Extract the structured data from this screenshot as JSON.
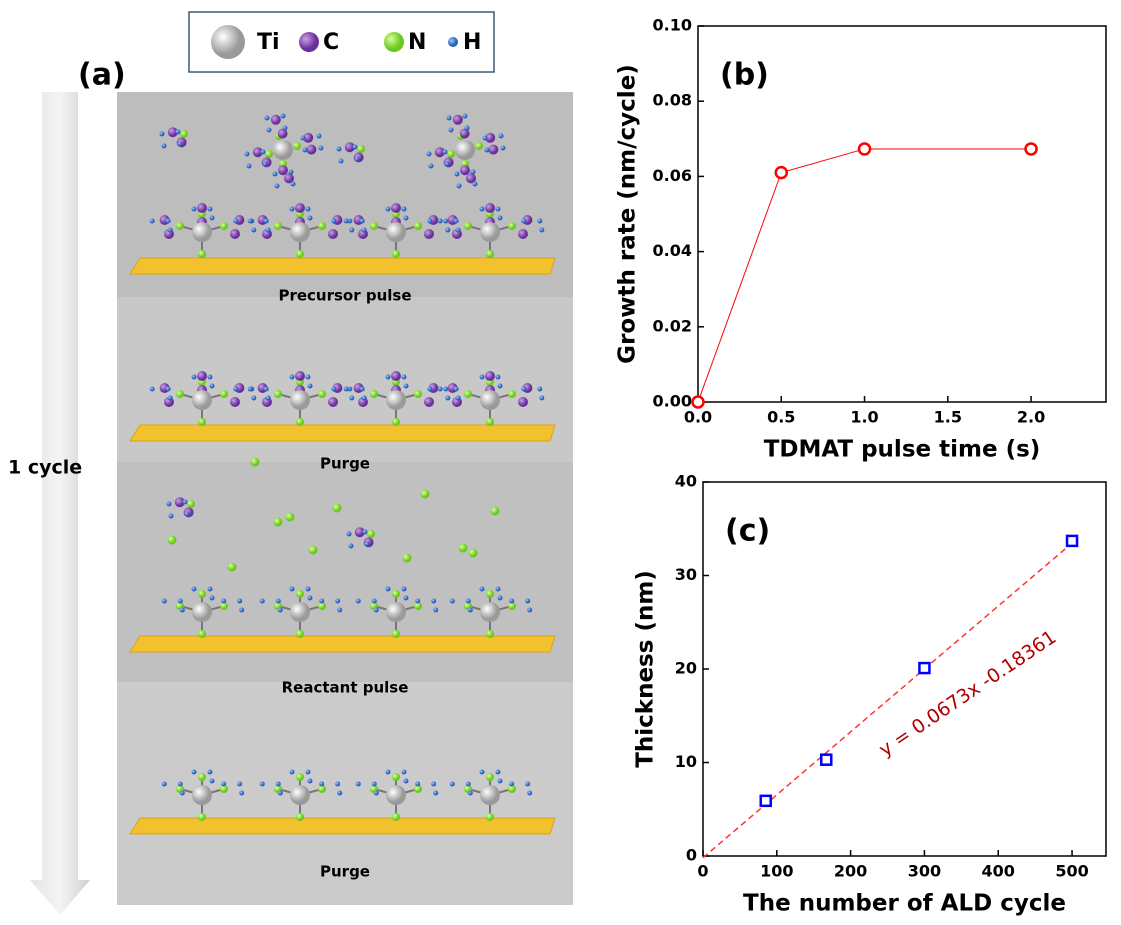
{
  "panel_a": {
    "label": "(a)",
    "legend": [
      "Ti",
      "C",
      "N",
      "H"
    ],
    "cycle_label": "1 cycle",
    "steps": [
      "Precursor pulse",
      "Purge",
      "Reactant pulse",
      "Purge"
    ]
  },
  "chart_data": [
    {
      "type": "line",
      "panel_label": "(b)",
      "x_label": "TDMAT pulse time (s)",
      "y_label": "Growth rate (nm/cycle)",
      "x": [
        0,
        0.5,
        1,
        2
      ],
      "values": [
        0,
        0.061,
        0.0673,
        0.0673
      ],
      "color": "#ff0000",
      "xlim": [
        0,
        2.45
      ],
      "ylim": [
        0,
        0.1
      ],
      "xticks": [
        {
          "value": 0,
          "label": "0.0"
        },
        0.5,
        {
          "value": 1,
          "label": "1.0"
        },
        1.5,
        {
          "value": 2,
          "label": "2.0"
        }
      ],
      "yticks": [
        {
          "value": 0,
          "label": "0.00"
        },
        0.02,
        0.04,
        0.06,
        0.08,
        {
          "value": 0.1,
          "label": "0.10"
        }
      ]
    },
    {
      "type": "scatter",
      "panel_label": "(c)",
      "x_label": "The number of ALD cycle",
      "y_label": "Thickness (nm)",
      "x": [
        85,
        167,
        300,
        500
      ],
      "values": [
        5.9,
        10.3,
        20.1,
        33.7
      ],
      "color": "#0000ff",
      "fit": {
        "slope": 0.0673,
        "intercept": -0.18361,
        "label": "y = 0.0673x -0.18361",
        "color": "#ff3333",
        "label_color": "#b00000"
      },
      "xlim": [
        0,
        546
      ],
      "ylim": [
        0,
        40
      ],
      "xticks": [
        0,
        100,
        200,
        300,
        400,
        500
      ],
      "yticks": [
        0,
        10,
        20,
        30,
        40
      ]
    }
  ]
}
